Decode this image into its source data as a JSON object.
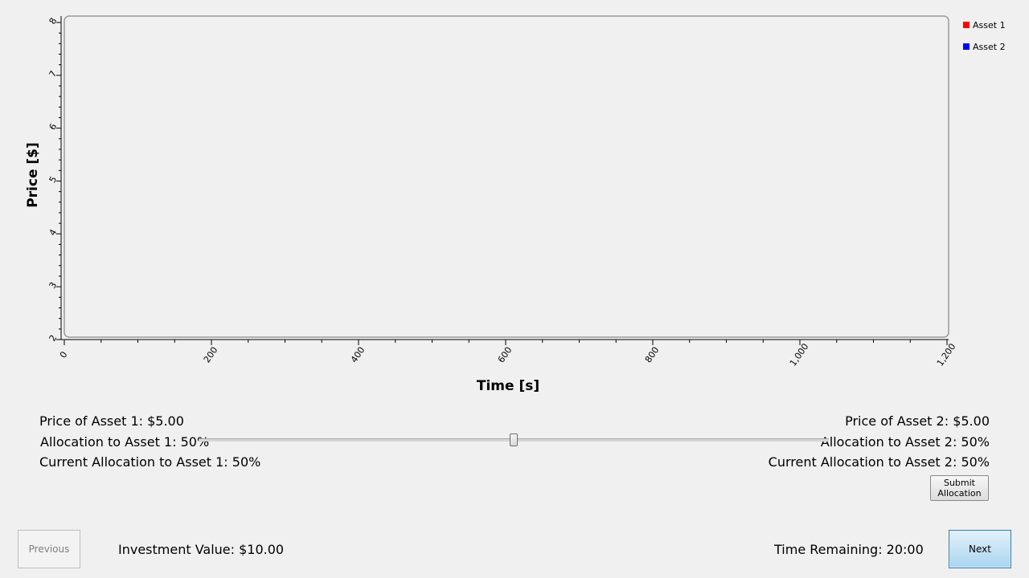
{
  "chart": {
    "xlabel": "Time [s]",
    "ylabel": "Price [$]"
  },
  "chart_data": {
    "type": "line",
    "xlabel": "Time [s]",
    "ylabel": "Price [$]",
    "xlim": [
      0,
      1200
    ],
    "ylim": [
      2,
      8
    ],
    "x_ticks": [
      "0",
      "200",
      "400",
      "600",
      "800",
      "1,000",
      "1,200"
    ],
    "y_ticks": [
      "2",
      "3",
      "4",
      "5",
      "6",
      "7",
      "8"
    ],
    "legend_position": "top-right",
    "series": [
      {
        "name": "Asset 1",
        "color": "#ff0000",
        "x": [],
        "y": []
      },
      {
        "name": "Asset 2",
        "color": "#0000ff",
        "x": [],
        "y": []
      }
    ]
  },
  "legend": [
    {
      "label": "Asset 1",
      "color": "#ff0000"
    },
    {
      "label": "Asset 2",
      "color": "#0000ff"
    }
  ],
  "asset1": {
    "price": "Price of Asset 1: $5.00",
    "allocation": "Allocation to Asset 1: 50%",
    "current": "Current Allocation to Asset 1: 50%"
  },
  "asset2": {
    "price": "Price of Asset 2: $5.00",
    "allocation": "Allocation to Asset 2: 50%",
    "current": "Current Allocation to Asset 2: 50%"
  },
  "slider": {
    "value": 50,
    "min": 0,
    "max": 100
  },
  "buttons": {
    "submit_line1": "Submit",
    "submit_line2": "Allocation",
    "previous": "Previous",
    "next": "Next"
  },
  "footer": {
    "investment": "Investment Value: $10.00",
    "time_remaining": "Time Remaining: 20:00"
  }
}
